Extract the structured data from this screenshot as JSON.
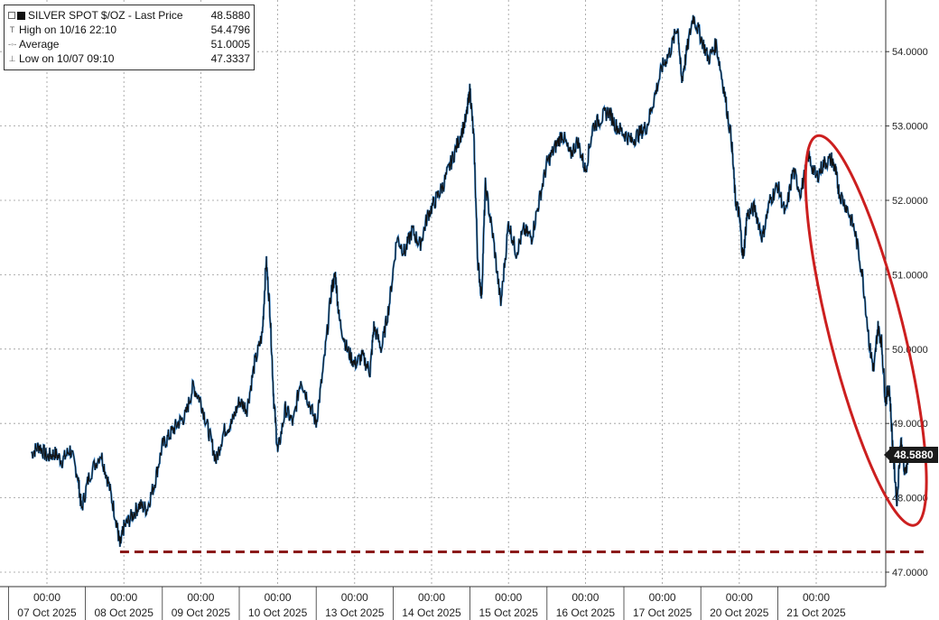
{
  "legend": {
    "title": "SILVER SPOT $/OZ - Last Price",
    "last_value": "48.5880",
    "high_label": "High on 10/16 22:10",
    "high_value": "54.4796",
    "avg_label": "Average",
    "avg_value": "51.0005",
    "low_label": "Low on 10/07 09:10",
    "low_value": "47.3337"
  },
  "last_badge": "48.5880",
  "colors": {
    "price_line": "#111111",
    "price_line_recent": "#1f78c8",
    "annotation": "#cc1f1f",
    "low_line": "#8b1a1a",
    "grid": "#999999"
  },
  "chart_data": {
    "type": "line",
    "title": "SILVER SPOT $/OZ - Last Price",
    "xlabel": "",
    "ylabel": "",
    "ylim": [
      47.0,
      54.6
    ],
    "y_ticks": [
      "47.0000",
      "48.0000",
      "49.0000",
      "50.0000",
      "51.0000",
      "52.0000",
      "53.0000",
      "54.0000"
    ],
    "x_ticks": [
      {
        "time": "00:00",
        "date": "07 Oct 2025"
      },
      {
        "time": "00:00",
        "date": "08 Oct 2025"
      },
      {
        "time": "00:00",
        "date": "09 Oct 2025"
      },
      {
        "time": "00:00",
        "date": "10 Oct 2025"
      },
      {
        "time": "00:00",
        "date": "13 Oct 2025"
      },
      {
        "time": "00:00",
        "date": "14 Oct 2025"
      },
      {
        "time": "00:00",
        "date": "15 Oct 2025"
      },
      {
        "time": "00:00",
        "date": "16 Oct 2025"
      },
      {
        "time": "00:00",
        "date": "17 Oct 2025"
      },
      {
        "time": "00:00",
        "date": "20 Oct 2025"
      },
      {
        "time": "00:00",
        "date": "21 Oct 2025"
      }
    ],
    "x_range": [
      -0.2,
      11.2
    ],
    "series": [
      {
        "name": "SILVER SPOT $/OZ",
        "points": [
          [
            -0.2,
            48.6
          ],
          [
            -0.1,
            48.7
          ],
          [
            0.0,
            48.55
          ],
          [
            0.1,
            48.6
          ],
          [
            0.2,
            48.5
          ],
          [
            0.3,
            48.65
          ],
          [
            0.4,
            48.3
          ],
          [
            0.45,
            47.85
          ],
          [
            0.55,
            48.3
          ],
          [
            0.7,
            48.6
          ],
          [
            0.8,
            48.2
          ],
          [
            0.9,
            47.7
          ],
          [
            0.95,
            47.35
          ],
          [
            1.0,
            47.6
          ],
          [
            1.1,
            47.75
          ],
          [
            1.2,
            47.9
          ],
          [
            1.3,
            47.85
          ],
          [
            1.4,
            48.2
          ],
          [
            1.5,
            48.7
          ],
          [
            1.6,
            48.85
          ],
          [
            1.7,
            49.0
          ],
          [
            1.8,
            49.1
          ],
          [
            1.9,
            49.5
          ],
          [
            2.0,
            49.3
          ],
          [
            2.1,
            48.9
          ],
          [
            2.2,
            48.5
          ],
          [
            2.3,
            48.9
          ],
          [
            2.4,
            49.0
          ],
          [
            2.5,
            49.3
          ],
          [
            2.6,
            49.2
          ],
          [
            2.7,
            49.8
          ],
          [
            2.8,
            50.2
          ],
          [
            2.85,
            51.2
          ],
          [
            2.9,
            50.5
          ],
          [
            2.95,
            49.3
          ],
          [
            3.0,
            48.6
          ],
          [
            3.1,
            49.2
          ],
          [
            3.2,
            49.0
          ],
          [
            3.3,
            49.6
          ],
          [
            3.4,
            49.3
          ],
          [
            3.5,
            49.0
          ],
          [
            3.6,
            49.8
          ],
          [
            3.7,
            50.8
          ],
          [
            3.75,
            51.0
          ],
          [
            3.8,
            50.4
          ],
          [
            3.9,
            50.0
          ],
          [
            4.0,
            49.8
          ],
          [
            4.1,
            49.9
          ],
          [
            4.2,
            49.7
          ],
          [
            4.25,
            50.3
          ],
          [
            4.35,
            50.0
          ],
          [
            4.45,
            50.6
          ],
          [
            4.55,
            51.5
          ],
          [
            4.65,
            51.3
          ],
          [
            4.75,
            51.6
          ],
          [
            4.85,
            51.4
          ],
          [
            4.95,
            51.8
          ],
          [
            5.05,
            52.0
          ],
          [
            5.15,
            52.2
          ],
          [
            5.25,
            52.5
          ],
          [
            5.35,
            52.8
          ],
          [
            5.45,
            53.1
          ],
          [
            5.5,
            53.5
          ],
          [
            5.55,
            52.8
          ],
          [
            5.6,
            51.2
          ],
          [
            5.65,
            50.7
          ],
          [
            5.7,
            52.2
          ],
          [
            5.8,
            51.5
          ],
          [
            5.9,
            50.6
          ],
          [
            6.0,
            51.7
          ],
          [
            6.1,
            51.3
          ],
          [
            6.2,
            51.6
          ],
          [
            6.3,
            51.5
          ],
          [
            6.4,
            52.0
          ],
          [
            6.5,
            52.5
          ],
          [
            6.6,
            52.7
          ],
          [
            6.7,
            52.9
          ],
          [
            6.8,
            52.6
          ],
          [
            6.9,
            52.8
          ],
          [
            7.0,
            52.4
          ],
          [
            7.1,
            53.0
          ],
          [
            7.2,
            53.1
          ],
          [
            7.3,
            53.2
          ],
          [
            7.4,
            53.0
          ],
          [
            7.5,
            52.9
          ],
          [
            7.6,
            52.8
          ],
          [
            7.7,
            52.9
          ],
          [
            7.8,
            53.0
          ],
          [
            7.9,
            53.4
          ],
          [
            8.0,
            53.8
          ],
          [
            8.1,
            54.0
          ],
          [
            8.2,
            54.35
          ],
          [
            8.25,
            53.6
          ],
          [
            8.3,
            53.9
          ],
          [
            8.4,
            54.48
          ],
          [
            8.5,
            54.2
          ],
          [
            8.6,
            53.9
          ],
          [
            8.7,
            54.1
          ],
          [
            8.8,
            53.5
          ],
          [
            8.9,
            52.8
          ],
          [
            8.95,
            52.0
          ],
          [
            9.0,
            51.8
          ],
          [
            9.05,
            51.2
          ],
          [
            9.1,
            51.8
          ],
          [
            9.2,
            51.9
          ],
          [
            9.3,
            51.5
          ],
          [
            9.4,
            52.0
          ],
          [
            9.5,
            52.2
          ],
          [
            9.6,
            51.8
          ],
          [
            9.7,
            52.4
          ],
          [
            9.8,
            52.1
          ],
          [
            9.9,
            52.6
          ],
          [
            10.0,
            52.3
          ],
          [
            10.1,
            52.5
          ],
          [
            10.2,
            52.55
          ],
          [
            10.25,
            52.4
          ],
          [
            10.3,
            52.1
          ],
          [
            10.4,
            51.9
          ],
          [
            10.5,
            51.6
          ],
          [
            10.6,
            51.0
          ],
          [
            10.7,
            50.0
          ],
          [
            10.75,
            49.7
          ],
          [
            10.8,
            50.3
          ],
          [
            10.85,
            50.1
          ],
          [
            10.9,
            49.3
          ],
          [
            10.95,
            49.5
          ],
          [
            11.0,
            48.6
          ],
          [
            11.05,
            47.95
          ],
          [
            11.1,
            48.8
          ],
          [
            11.15,
            48.3
          ],
          [
            11.2,
            48.59
          ]
        ]
      }
    ],
    "reference_lines": [
      {
        "label": "Low",
        "y": 47.3337,
        "x_from": 0.95,
        "x_to": 11.2,
        "style": "dashed"
      }
    ],
    "annotations": [
      {
        "type": "ellipse",
        "x_from": 10.0,
        "x_to": 11.2,
        "y_from": 47.6,
        "y_to": 52.9
      }
    ],
    "grid": true,
    "legend_position": "top-left"
  }
}
